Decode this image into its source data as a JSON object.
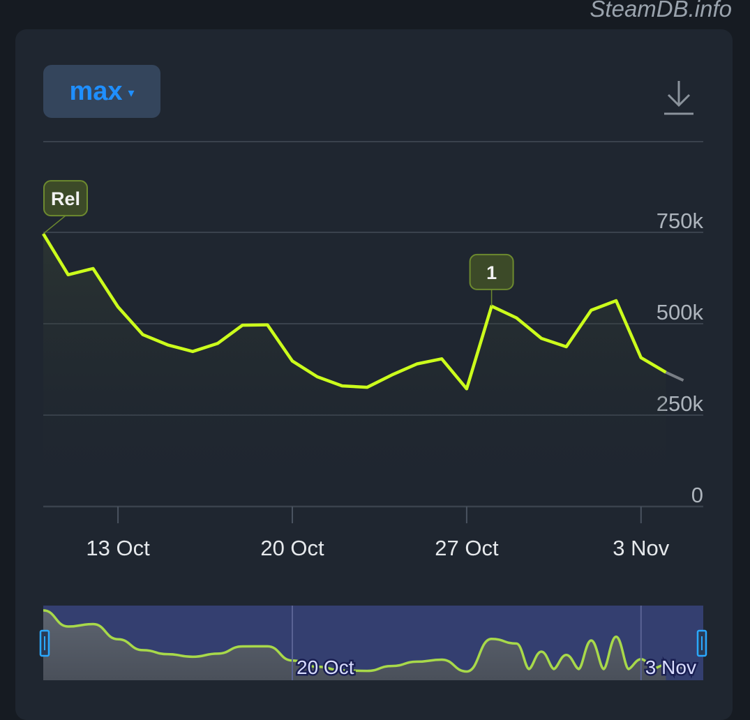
{
  "watermark": "SteamDB.info",
  "range_selector": {
    "label": "max",
    "caret": "▾"
  },
  "download_icon": "download-icon",
  "colors": {
    "line": "#ccff1c",
    "navigator_line": "#a8d94a",
    "flag_bg": "#3c4a28",
    "flag_border": "#6d8a2f",
    "grid": "#3a424d",
    "navigator_bg": "#343f70",
    "accent": "#1f8fff"
  },
  "chart_data": {
    "type": "line",
    "title": "",
    "xlabel": "",
    "ylabel": "",
    "x": [
      "2023-10-10",
      "2023-10-11",
      "2023-10-12",
      "2023-10-13",
      "2023-10-14",
      "2023-10-15",
      "2023-10-16",
      "2023-10-17",
      "2023-10-18",
      "2023-10-19",
      "2023-10-20",
      "2023-10-21",
      "2023-10-22",
      "2023-10-23",
      "2023-10-24",
      "2023-10-25",
      "2023-10-26",
      "2023-10-27",
      "2023-10-28",
      "2023-10-29",
      "2023-10-30",
      "2023-10-31",
      "2023-11-01",
      "2023-11-02",
      "2023-11-03",
      "2023-11-04"
    ],
    "series": [
      {
        "values": [
          746000,
          634000,
          651000,
          546000,
          470000,
          442000,
          424000,
          446000,
          496000,
          497000,
          398000,
          355000,
          330000,
          326000,
          360000,
          390000,
          404000,
          322000,
          548000,
          516000,
          460000,
          437000,
          537000,
          563000,
          407000,
          367000
        ],
        "partial_last": 345000
      }
    ],
    "ylim": [
      0,
      750000
    ],
    "y_ticks": [
      {
        "value": 750000,
        "label": "750k"
      },
      {
        "value": 500000,
        "label": "500k"
      },
      {
        "value": 250000,
        "label": "250k"
      },
      {
        "value": 0,
        "label": "0"
      }
    ],
    "x_ticks": [
      {
        "x": "2023-10-13",
        "label": "13 Oct"
      },
      {
        "x": "2023-10-20",
        "label": "20 Oct"
      },
      {
        "x": "2023-10-27",
        "label": "27 Oct"
      },
      {
        "x": "2023-11-03",
        "label": "3 Nov"
      }
    ],
    "flags": [
      {
        "x": "2023-10-10",
        "label": "Rel"
      },
      {
        "x": "2023-10-28",
        "label": "1"
      }
    ],
    "grid": true,
    "legend": "none",
    "navigator": {
      "labels": [
        {
          "x": "2023-10-20",
          "label": "20 Oct"
        },
        {
          "x": "2023-11-03",
          "label": "3 Nov"
        }
      ]
    }
  }
}
